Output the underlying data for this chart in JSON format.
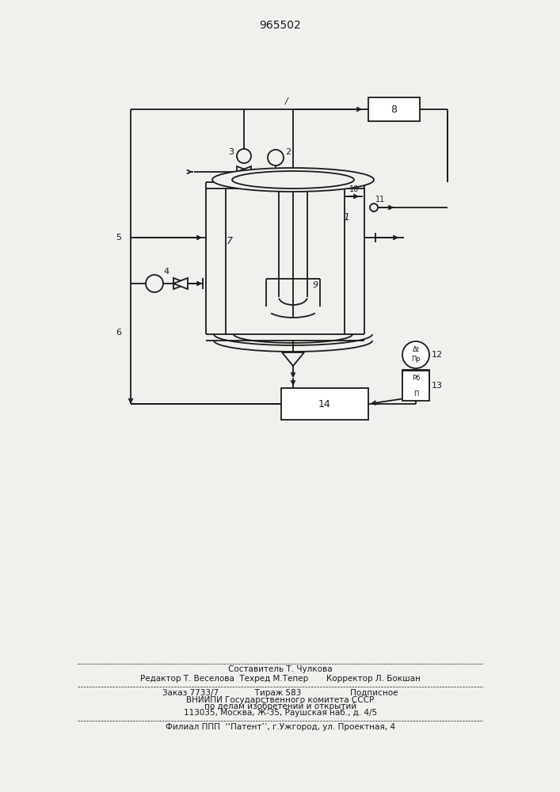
{
  "title": "965502",
  "bg_color": "#f0f0ec",
  "line_color": "#1a1a1a",
  "footer": {
    "line1": "Составитель Т. Чулкова",
    "line2": "Редактор Т. Веселова  Техред М.Тепер       Корректор Л. Бокшан",
    "line3": "Заказ 7733/7              Тираж 583                   Подписное",
    "line4": "ВНИИПИ Государственного комитета СССР",
    "line5": "по делам изобретений и открытий",
    "line6": "113035, Москва, Ж-35, Раушская наб., д. 4/5",
    "line7": "Филиал ППП  ‘‘Патент’’, г.Ужгород, ул. Проектная, 4"
  }
}
